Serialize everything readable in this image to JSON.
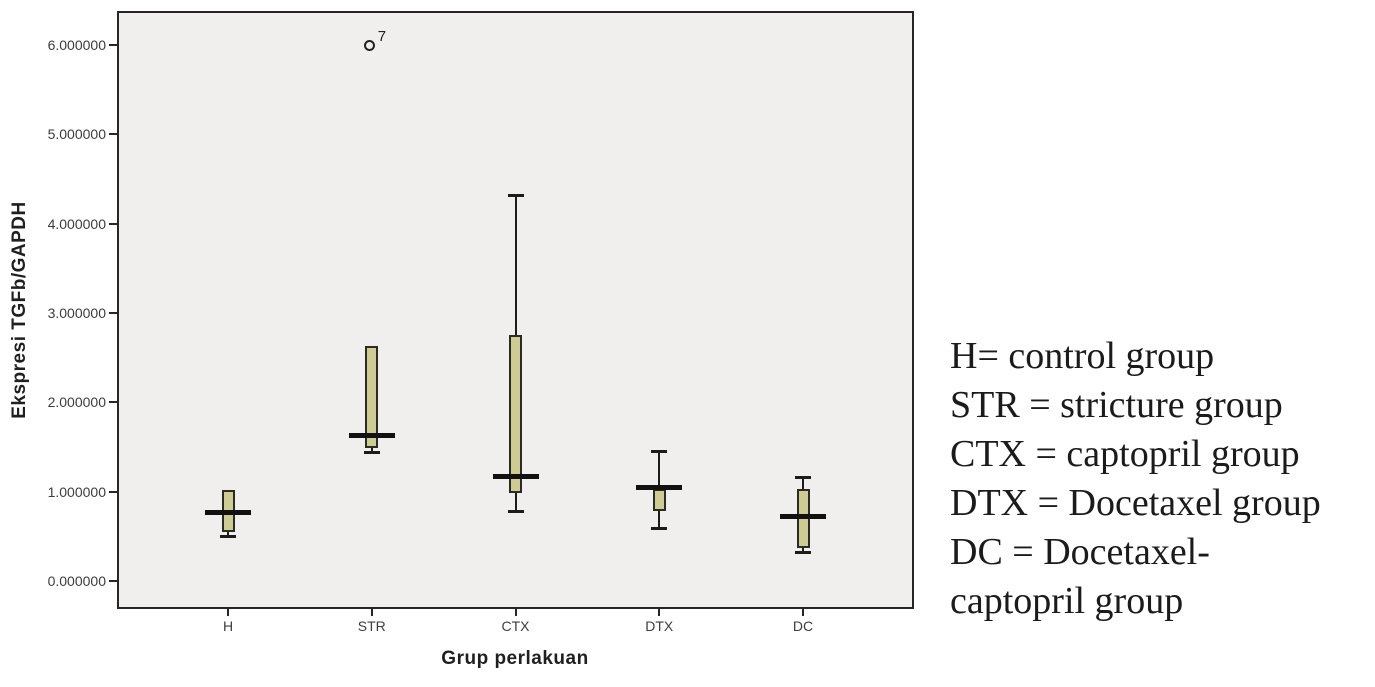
{
  "figure": {
    "y_axis_title": "Ekspresi TGFb/GAPDH",
    "x_axis_title": "Grup perlakuan"
  },
  "legend": {
    "lines": [
      "H= control group",
      "STR = stricture group",
      "CTX = captopril group",
      "DTX = Docetaxel group",
      "DC = Docetaxel-",
      "captopril group"
    ]
  },
  "chart_data": {
    "type": "boxplot",
    "title": "",
    "xlabel": "Grup perlakuan",
    "ylabel": "Ekspresi TGFb/GAPDH",
    "categories": [
      "H",
      "STR",
      "CTX",
      "DTX",
      "DC"
    ],
    "y_ticks": [
      "0.000000",
      "1.000000",
      "2.000000",
      "3.000000",
      "4.000000",
      "5.000000",
      "6.000000"
    ],
    "y_tick_values": [
      0,
      1,
      2,
      3,
      4,
      5,
      6
    ],
    "ylim": [
      -0.29,
      6.36
    ],
    "grid": false,
    "legend_position": "right-text-block",
    "boxes": [
      {
        "group": "H",
        "whisker_low": 0.5,
        "q1": 0.55,
        "median": 0.77,
        "q3": 1.02,
        "whisker_high": 1.02,
        "outliers": []
      },
      {
        "group": "STR",
        "whisker_low": 1.44,
        "q1": 1.49,
        "median": 1.63,
        "q3": 2.63,
        "whisker_high": 2.63,
        "outliers": [
          {
            "value": 6.0,
            "label": "7"
          }
        ]
      },
      {
        "group": "CTX",
        "whisker_low": 0.78,
        "q1": 0.99,
        "median": 1.17,
        "q3": 2.76,
        "whisker_high": 4.32,
        "outliers": []
      },
      {
        "group": "DTX",
        "whisker_low": 0.59,
        "q1": 0.79,
        "median": 1.05,
        "q3": 1.03,
        "whisker_high": 1.46,
        "outliers": []
      },
      {
        "group": "DC",
        "whisker_low": 0.33,
        "q1": 0.37,
        "median": 0.72,
        "q3": 1.03,
        "whisker_high": 1.17,
        "outliers": []
      }
    ],
    "colors": {
      "box_fill": "#cfcc93",
      "line": "#1c1c1c",
      "plot_background": "#f0efed",
      "page_background": "#ffffff"
    }
  }
}
